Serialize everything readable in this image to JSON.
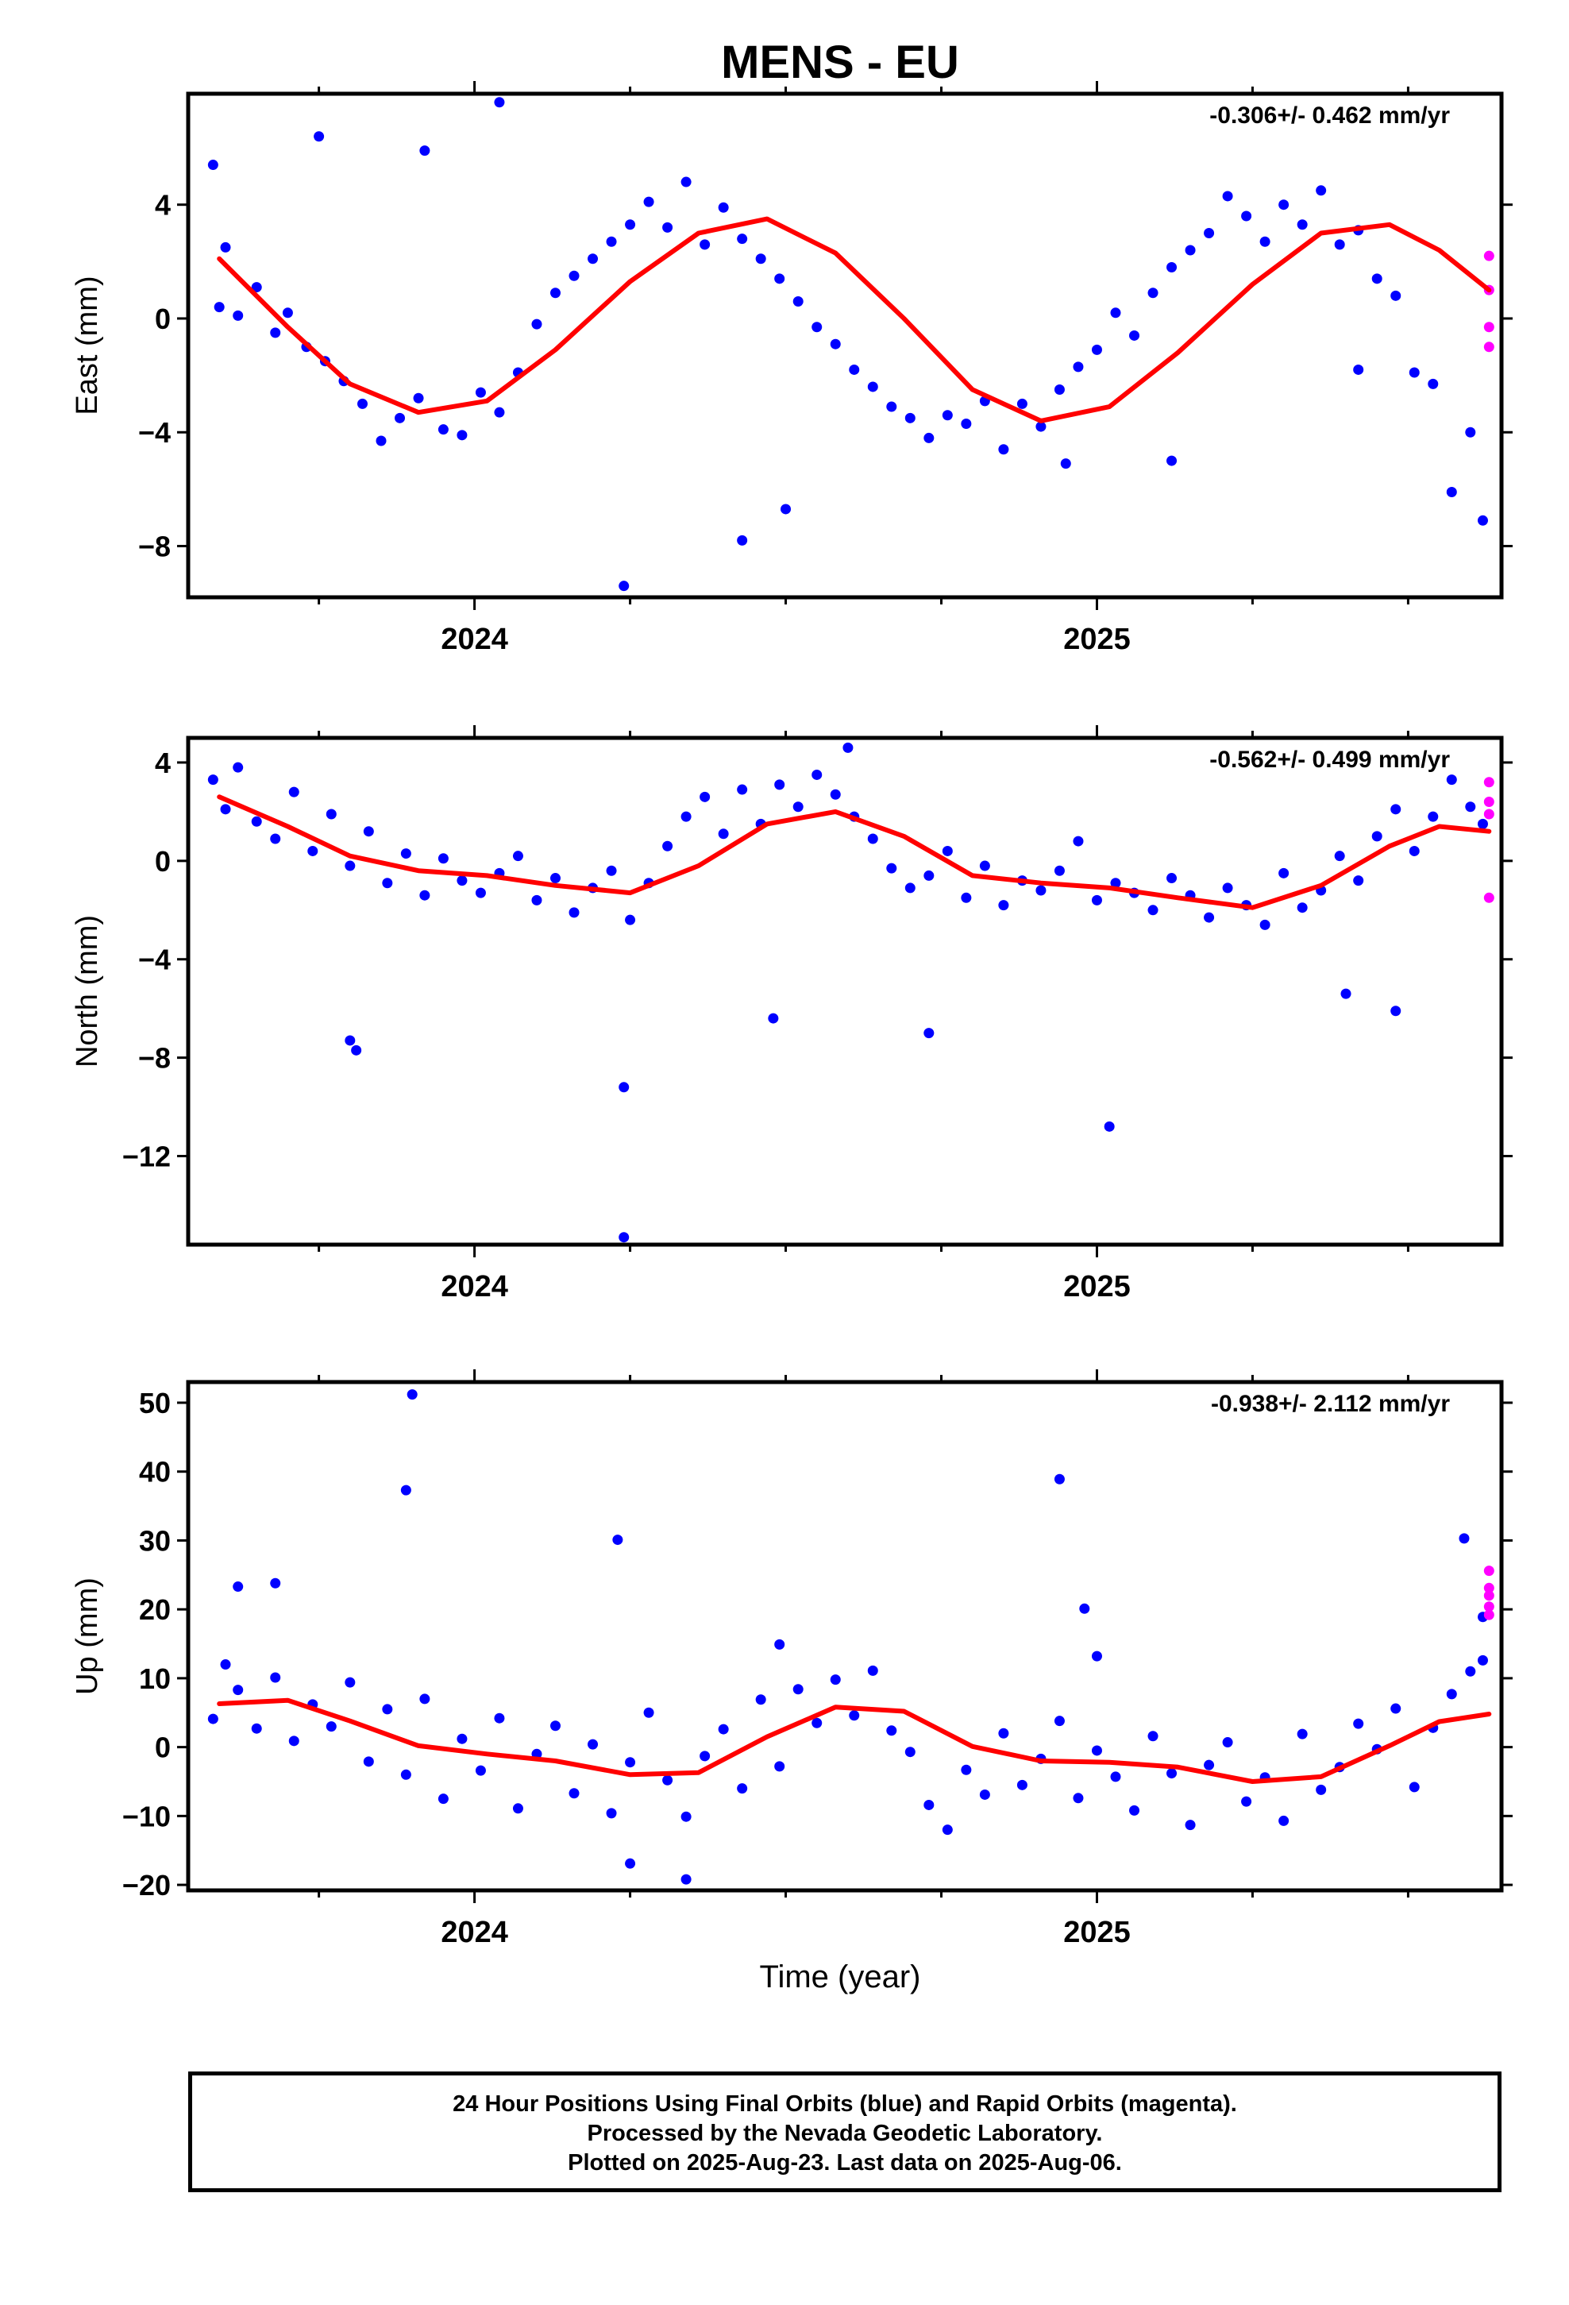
{
  "title": "MENS - EU",
  "xlabel": "Time (year)",
  "footer": [
    "24 Hour Positions Using Final Orbits (blue) and Rapid Orbits (magenta).",
    "Processed by the Nevada Geodetic Laboratory.",
    "Plotted on 2025-Aug-23. Last data on 2025-Aug-06."
  ],
  "colors": {
    "final": "#0000ff",
    "rapid": "#ff00ff",
    "model": "#ff0000"
  },
  "chart_data": [
    {
      "type": "scatter",
      "ylabel": "East (mm)",
      "rate_label": "-0.306+/- 0.462 mm/yr",
      "xlim": [
        2023.54,
        2025.65
      ],
      "ylim": [
        -9.8,
        7.9
      ],
      "yticks": [
        4,
        0,
        -4,
        -8
      ],
      "xtick_labels": [
        2024,
        2025
      ],
      "model": {
        "type": "line",
        "x": [
          2023.59,
          2023.7,
          2023.8,
          2023.91,
          2024.02,
          2024.13,
          2024.25,
          2024.36,
          2024.47,
          2024.58,
          2024.69,
          2024.8,
          2024.91,
          2025.02,
          2025.13,
          2025.25,
          2025.36,
          2025.47,
          2025.55,
          2025.63
        ],
        "y": [
          2.1,
          -0.3,
          -2.3,
          -3.3,
          -2.9,
          -1.1,
          1.3,
          3.0,
          3.5,
          2.3,
          0.0,
          -2.5,
          -3.6,
          -3.1,
          -1.2,
          1.2,
          3.0,
          3.3,
          2.4,
          1.0
        ]
      },
      "final_points": {
        "x": [
          2023.58,
          2023.59,
          2023.6,
          2023.62,
          2023.65,
          2023.68,
          2023.7,
          2023.73,
          2023.76,
          2023.79,
          2023.82,
          2023.85,
          2023.88,
          2023.91,
          2023.95,
          2023.98,
          2024.01,
          2024.04,
          2024.07,
          2024.1,
          2024.13,
          2024.16,
          2024.19,
          2024.22,
          2024.25,
          2024.28,
          2024.31,
          2024.34,
          2024.37,
          2024.4,
          2024.43,
          2024.46,
          2024.49,
          2024.52,
          2024.55,
          2024.58,
          2024.61,
          2024.64,
          2024.67,
          2024.7,
          2024.73,
          2024.76,
          2024.79,
          2024.82,
          2024.85,
          2024.88,
          2024.91,
          2024.94,
          2024.97,
          2025.0,
          2025.03,
          2025.06,
          2025.09,
          2025.12,
          2025.15,
          2025.18,
          2025.21,
          2025.24,
          2025.27,
          2025.3,
          2025.33,
          2025.36,
          2025.39,
          2025.42,
          2025.45,
          2025.48,
          2025.51,
          2025.54,
          2025.57,
          2025.6,
          2025.62,
          2023.75,
          2023.92,
          2024.04,
          2024.24,
          2024.43,
          2024.5,
          2024.95,
          2025.12,
          2025.42
        ],
        "y": [
          5.4,
          0.4,
          2.5,
          0.1,
          1.1,
          -0.5,
          0.2,
          -1.0,
          -1.5,
          -2.2,
          -3.0,
          -4.3,
          -3.5,
          -2.8,
          -3.9,
          -4.1,
          -2.6,
          -3.3,
          -1.9,
          -0.2,
          0.9,
          1.5,
          2.1,
          2.7,
          3.3,
          4.1,
          3.2,
          4.8,
          2.6,
          3.9,
          2.8,
          2.1,
          1.4,
          0.6,
          -0.3,
          -0.9,
          -1.8,
          -2.4,
          -3.1,
          -3.5,
          -4.2,
          -3.4,
          -3.7,
          -2.9,
          -4.6,
          -3.0,
          -3.8,
          -2.5,
          -1.7,
          -1.1,
          0.2,
          -0.6,
          0.9,
          1.8,
          2.4,
          3.0,
          4.3,
          3.6,
          2.7,
          4.0,
          3.3,
          4.5,
          2.6,
          3.1,
          1.4,
          0.8,
          -1.9,
          -2.3,
          -6.1,
          -4.0,
          -7.1,
          6.4,
          5.9,
          7.6,
          -9.4,
          -7.8,
          -6.7,
          -5.1,
          -5.0,
          -1.8
        ]
      },
      "rapid_points": {
        "x": [
          2025.63,
          2025.63,
          2025.63,
          2025.63
        ],
        "y": [
          2.2,
          1.0,
          -0.3,
          -1.0
        ]
      }
    },
    {
      "type": "scatter",
      "ylabel": "North (mm)",
      "rate_label": "-0.562+/- 0.499 mm/yr",
      "xlim": [
        2023.54,
        2025.65
      ],
      "ylim": [
        -15.6,
        5.0
      ],
      "yticks": [
        4,
        0,
        -4,
        -8,
        -12
      ],
      "xtick_labels": [
        2024,
        2025
      ],
      "model": {
        "type": "line",
        "x": [
          2023.59,
          2023.7,
          2023.8,
          2023.91,
          2024.02,
          2024.13,
          2024.25,
          2024.36,
          2024.47,
          2024.58,
          2024.69,
          2024.8,
          2024.91,
          2025.02,
          2025.13,
          2025.25,
          2025.36,
          2025.47,
          2025.55,
          2025.63
        ],
        "y": [
          2.6,
          1.4,
          0.2,
          -0.4,
          -0.6,
          -1.0,
          -1.3,
          -0.2,
          1.5,
          2.0,
          1.0,
          -0.6,
          -0.9,
          -1.1,
          -1.5,
          -1.9,
          -1.0,
          0.6,
          1.4,
          1.2
        ]
      },
      "final_points": {
        "x": [
          2023.58,
          2023.6,
          2023.62,
          2023.65,
          2023.68,
          2023.71,
          2023.74,
          2023.77,
          2023.8,
          2023.83,
          2023.86,
          2023.89,
          2023.92,
          2023.95,
          2023.98,
          2024.01,
          2024.04,
          2024.07,
          2024.1,
          2024.13,
          2024.16,
          2024.19,
          2024.22,
          2024.25,
          2024.28,
          2024.31,
          2024.34,
          2024.37,
          2024.4,
          2024.43,
          2024.46,
          2024.49,
          2024.52,
          2024.55,
          2024.58,
          2024.61,
          2024.64,
          2024.67,
          2024.7,
          2024.73,
          2024.76,
          2024.79,
          2024.82,
          2024.85,
          2024.88,
          2024.91,
          2024.94,
          2024.97,
          2025.0,
          2025.03,
          2025.06,
          2025.09,
          2025.12,
          2025.15,
          2025.18,
          2025.21,
          2025.24,
          2025.27,
          2025.3,
          2025.33,
          2025.36,
          2025.39,
          2025.42,
          2025.45,
          2025.48,
          2025.51,
          2025.54,
          2025.57,
          2025.6,
          2025.62,
          2023.8,
          2023.81,
          2024.24,
          2024.24,
          2024.48,
          2024.73,
          2025.02,
          2025.4,
          2025.48,
          2024.6
        ],
        "y": [
          3.3,
          2.1,
          3.8,
          1.6,
          0.9,
          2.8,
          0.4,
          1.9,
          -0.2,
          1.2,
          -0.9,
          0.3,
          -1.4,
          0.1,
          -0.8,
          -1.3,
          -0.5,
          0.2,
          -1.6,
          -0.7,
          -2.1,
          -1.1,
          -0.4,
          -2.4,
          -0.9,
          0.6,
          1.8,
          2.6,
          1.1,
          2.9,
          1.5,
          3.1,
          2.2,
          3.5,
          2.7,
          1.8,
          0.9,
          -0.3,
          -1.1,
          -0.6,
          0.4,
          -1.5,
          -0.2,
          -1.8,
          -0.8,
          -1.2,
          -0.4,
          0.8,
          -1.6,
          -0.9,
          -1.3,
          -2.0,
          -0.7,
          -1.4,
          -2.3,
          -1.1,
          -1.8,
          -2.6,
          -0.5,
          -1.9,
          -1.2,
          0.2,
          -0.8,
          1.0,
          2.1,
          0.4,
          1.8,
          3.3,
          2.2,
          1.5,
          -7.3,
          -7.7,
          -9.2,
          -15.3,
          -6.4,
          -7.0,
          -10.8,
          -5.4,
          -6.1,
          4.6
        ]
      },
      "rapid_points": {
        "x": [
          2025.63,
          2025.63,
          2025.63,
          2025.63
        ],
        "y": [
          3.2,
          2.4,
          1.9,
          -1.5
        ]
      }
    },
    {
      "type": "scatter",
      "ylabel": "Up (mm)",
      "rate_label": "-0.938+/- 2.112 mm/yr",
      "xlim": [
        2023.54,
        2025.65
      ],
      "ylim": [
        -20.8,
        53.0
      ],
      "yticks": [
        50,
        40,
        30,
        20,
        10,
        0,
        -10,
        -20
      ],
      "xtick_labels": [
        2024,
        2025
      ],
      "model": {
        "type": "line",
        "x": [
          2023.59,
          2023.7,
          2023.8,
          2023.91,
          2024.02,
          2024.13,
          2024.25,
          2024.36,
          2024.47,
          2024.58,
          2024.69,
          2024.8,
          2024.91,
          2025.02,
          2025.13,
          2025.25,
          2025.36,
          2025.47,
          2025.55,
          2025.63
        ],
        "y": [
          6.3,
          6.8,
          3.8,
          0.2,
          -1.0,
          -2.0,
          -4.0,
          -3.7,
          1.5,
          5.8,
          5.2,
          0.1,
          -2.0,
          -2.2,
          -2.9,
          -5.0,
          -4.3,
          0.2,
          3.7,
          4.8
        ]
      },
      "final_points": {
        "x": [
          2023.58,
          2023.6,
          2023.62,
          2023.65,
          2023.68,
          2023.71,
          2023.74,
          2023.77,
          2023.8,
          2023.83,
          2023.86,
          2023.89,
          2023.92,
          2023.95,
          2023.98,
          2024.01,
          2024.04,
          2024.07,
          2024.1,
          2024.13,
          2024.16,
          2024.19,
          2024.22,
          2024.25,
          2024.28,
          2024.31,
          2024.34,
          2024.37,
          2024.4,
          2024.43,
          2024.46,
          2024.49,
          2024.52,
          2024.55,
          2024.58,
          2024.61,
          2024.64,
          2024.67,
          2024.7,
          2024.73,
          2024.76,
          2024.79,
          2024.82,
          2024.85,
          2024.88,
          2024.91,
          2024.94,
          2024.97,
          2025.0,
          2025.03,
          2025.06,
          2025.09,
          2025.12,
          2025.15,
          2025.18,
          2025.21,
          2025.24,
          2025.27,
          2025.3,
          2025.33,
          2025.36,
          2025.39,
          2025.42,
          2025.45,
          2025.48,
          2025.51,
          2025.54,
          2025.57,
          2025.6,
          2025.62,
          2023.62,
          2023.68,
          2023.89,
          2023.9,
          2024.23,
          2024.94,
          2024.98,
          2025.0,
          2025.59,
          2025.62,
          2024.25,
          2024.34,
          2024.49
        ],
        "y": [
          4.1,
          12.0,
          8.3,
          2.7,
          10.1,
          0.9,
          6.2,
          3.0,
          9.4,
          -2.1,
          5.5,
          -4.0,
          7.0,
          -7.5,
          1.2,
          -3.4,
          4.2,
          -8.9,
          -1.0,
          3.1,
          -6.7,
          0.4,
          -9.6,
          -2.2,
          5.0,
          -4.8,
          -10.1,
          -1.3,
          2.6,
          -6.0,
          6.9,
          -2.8,
          8.4,
          3.5,
          9.8,
          4.6,
          11.1,
          2.4,
          -0.7,
          -8.4,
          -12.0,
          -3.3,
          -6.9,
          2.0,
          -5.5,
          -1.7,
          3.8,
          -7.4,
          -0.5,
          -4.3,
          -9.2,
          1.6,
          -3.8,
          -11.3,
          -2.6,
          0.7,
          -7.9,
          -4.4,
          -10.7,
          1.9,
          -6.2,
          -2.9,
          3.4,
          -0.3,
          5.6,
          -5.8,
          2.8,
          7.7,
          11.0,
          12.6,
          23.3,
          23.8,
          37.3,
          51.2,
          30.1,
          38.9,
          20.1,
          13.2,
          30.3,
          18.9,
          -16.9,
          -19.2,
          14.9
        ]
      },
      "rapid_points": {
        "x": [
          2025.63,
          2025.63,
          2025.63,
          2025.63,
          2025.63
        ],
        "y": [
          25.6,
          22.0,
          20.4,
          19.2,
          23.1
        ]
      }
    }
  ]
}
